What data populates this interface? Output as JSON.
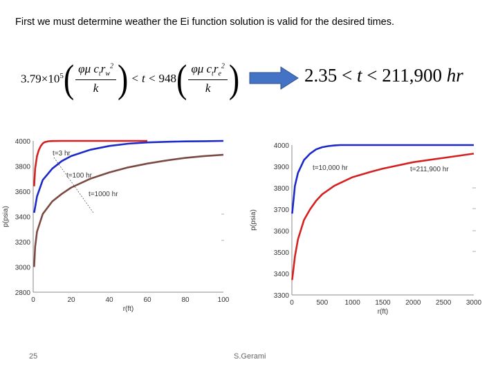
{
  "heading": "First we must determine weather the Ei function solution is valid for the desired times.",
  "equation_left": {
    "coef1": "3.79×10",
    "coef1_exp": "5",
    "lt": "< t <",
    "coef2": "948",
    "num1": "φμ c",
    "num1_sub": "t",
    "num1_r": "r",
    "num1_r_sub": "w",
    "num1_r_sup": "2",
    "den1": "k",
    "num2": "φμ c",
    "num2_sub": "t",
    "num2_r": "r",
    "num2_r_sub": "e",
    "num2_r_sup": "2",
    "den2": "k"
  },
  "equation_right": {
    "left": "2.35 < ",
    "var": "t",
    "right": " < 211,900 ",
    "unit": "hr"
  },
  "arrow_color": "#4472C4",
  "footer": {
    "page_number": "25",
    "author": "S.Gerami"
  },
  "chart_data": [
    {
      "type": "line",
      "xlabel": "r(ft)",
      "ylabel": "p(psia)",
      "xlim": [
        0,
        100
      ],
      "ylim": [
        2800,
        4000
      ],
      "x_ticks": [
        "0",
        "20",
        "40",
        "60",
        "80",
        "100"
      ],
      "y_ticks": [
        "2800",
        "3000",
        "3200",
        "3400",
        "3600",
        "3800",
        "4000"
      ],
      "series": [
        {
          "name": "t=3 hr",
          "color": "#d42020",
          "x": [
            0.5,
            1,
            2,
            3,
            4,
            5,
            6,
            8,
            10,
            15,
            20,
            30,
            40,
            50,
            60
          ],
          "y": [
            3640,
            3780,
            3880,
            3930,
            3960,
            3980,
            3990,
            3997,
            3999,
            4000,
            4000,
            4000,
            4000,
            4000,
            4000
          ]
        },
        {
          "name": "t=100 hr",
          "color": "#1c28c8",
          "x": [
            0.5,
            2,
            5,
            10,
            15,
            20,
            30,
            40,
            50,
            60,
            70,
            80,
            90,
            100
          ],
          "y": [
            3430,
            3560,
            3690,
            3780,
            3840,
            3880,
            3930,
            3960,
            3978,
            3988,
            3993,
            3996,
            3998,
            4000
          ]
        },
        {
          "name": "t=1000 hr",
          "color": "#7a4a42",
          "x": [
            0.5,
            1,
            2,
            5,
            10,
            15,
            20,
            30,
            40,
            50,
            60,
            70,
            80,
            90,
            100
          ],
          "y": [
            3000,
            3160,
            3280,
            3420,
            3520,
            3580,
            3630,
            3700,
            3750,
            3790,
            3820,
            3845,
            3865,
            3880,
            3890
          ]
        }
      ]
    },
    {
      "type": "line",
      "xlabel": "r(ft)",
      "ylabel": "p(psia)",
      "xlim": [
        0,
        3000
      ],
      "ylim": [
        3300,
        4000
      ],
      "x_ticks": [
        "0",
        "500",
        "1000",
        "1500",
        "2000",
        "2500",
        "3000"
      ],
      "y_ticks": [
        "3300",
        "3400",
        "3500",
        "3600",
        "3700",
        "3800",
        "3900",
        "4000"
      ],
      "series": [
        {
          "name": "t=10,000 hr",
          "color": "#1c28c8",
          "x": [
            5,
            50,
            100,
            200,
            300,
            400,
            500,
            600,
            700,
            800,
            1000,
            1500,
            2000,
            2500,
            3000
          ],
          "y": [
            3680,
            3810,
            3870,
            3930,
            3960,
            3980,
            3990,
            3995,
            3998,
            4000,
            4000,
            4000,
            4000,
            4000,
            4000
          ]
        },
        {
          "name": "t=211,900 hr",
          "color": "#d42020",
          "x": [
            5,
            50,
            100,
            200,
            300,
            400,
            500,
            700,
            1000,
            1300,
            1500,
            2000,
            2500,
            3000
          ],
          "y": [
            3370,
            3480,
            3560,
            3650,
            3700,
            3740,
            3770,
            3810,
            3850,
            3875,
            3890,
            3920,
            3940,
            3960
          ]
        }
      ]
    }
  ]
}
